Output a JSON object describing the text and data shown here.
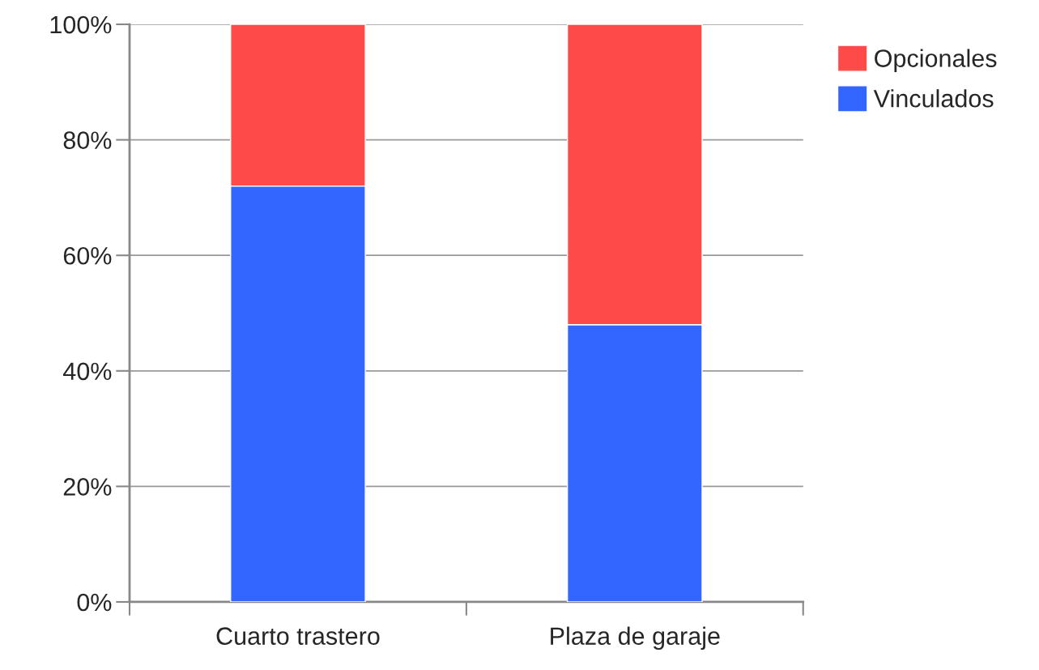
{
  "chart_data": {
    "type": "bar",
    "stacked": true,
    "categories": [
      "Cuarto trastero",
      "Plaza de garaje"
    ],
    "series": [
      {
        "name": "Vinculados",
        "color": "#3366ff",
        "values": [
          72,
          48
        ]
      },
      {
        "name": "Opcionales",
        "color": "#ff4a4a",
        "values": [
          28,
          52
        ]
      }
    ],
    "ylim": [
      0,
      100
    ],
    "yticks": [
      {
        "value": 0,
        "label": "0%"
      },
      {
        "value": 20,
        "label": "20%"
      },
      {
        "value": 40,
        "label": "40%"
      },
      {
        "value": 60,
        "label": "60%"
      },
      {
        "value": 80,
        "label": "80%"
      },
      {
        "value": 100,
        "label": "100%"
      }
    ],
    "grid": "y",
    "legend": "top right"
  }
}
